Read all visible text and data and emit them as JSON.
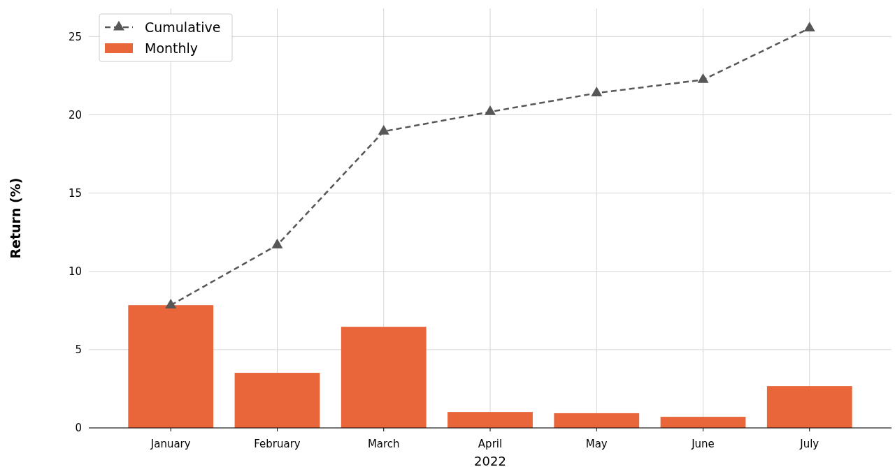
{
  "chart_data": {
    "type": "bar",
    "xlabel": "2022",
    "ylabel": "Return (%)",
    "categories": [
      "January",
      "February",
      "March",
      "April",
      "May",
      "June",
      "July"
    ],
    "series": [
      {
        "name": "Monthly",
        "color": "#e8663a",
        "values": [
          7.84,
          3.52,
          6.46,
          1.02,
          0.94,
          0.71,
          2.67
        ]
      },
      {
        "name": "Cumulative",
        "type": "line",
        "color": "#575757",
        "marker": "triangle",
        "line_style": "dashed",
        "values": [
          7.84,
          11.68,
          18.94,
          20.19,
          21.39,
          22.24,
          25.53
        ]
      }
    ],
    "ylim": [
      0,
      26.8
    ],
    "yticks": [
      0,
      5,
      10,
      15,
      20,
      25
    ],
    "grid": true,
    "legend": "top left"
  }
}
